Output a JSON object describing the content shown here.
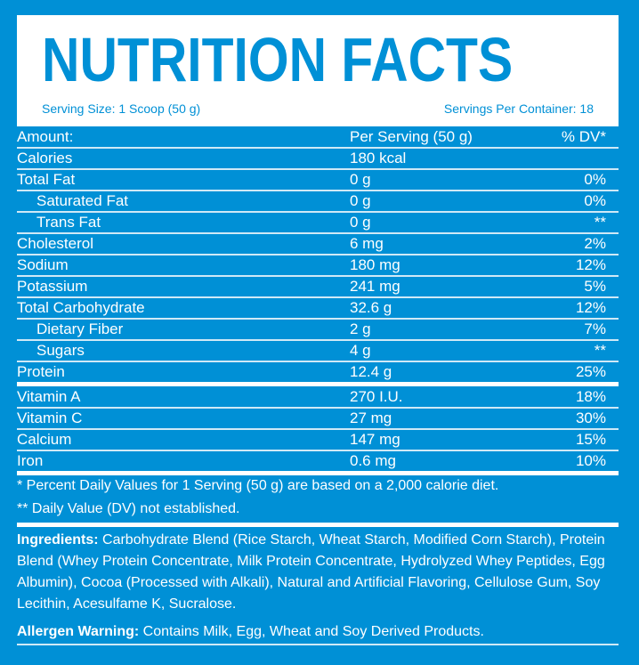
{
  "header": {
    "title": "NUTRITION FACTS",
    "serving_size": "Serving Size: 1 Scoop (50 g)",
    "servings_per_container": "Servings Per Container: 18"
  },
  "table": {
    "columns": [
      "Amount:",
      "Per Serving (50 g)",
      "% DV*"
    ],
    "rows": [
      {
        "name": "Calories",
        "amount": "180 kcal",
        "dv": ""
      },
      {
        "name": "Total Fat",
        "amount": "0 g",
        "dv": "0%"
      },
      {
        "name": "Saturated Fat",
        "amount": "0 g",
        "dv": "0%"
      },
      {
        "name": "Trans Fat",
        "amount": "0 g",
        "dv": "**"
      },
      {
        "name": "Cholesterol",
        "amount": "6 mg",
        "dv": "2%"
      },
      {
        "name": "Sodium",
        "amount": "180 mg",
        "dv": "12%"
      },
      {
        "name": "Potassium",
        "amount": "241 mg",
        "dv": "5%"
      },
      {
        "name": "Total Carbohydrate",
        "amount": "32.6 g",
        "dv": "12%"
      },
      {
        "name": "Dietary Fiber",
        "amount": "2 g",
        "dv": "7%"
      },
      {
        "name": "Sugars",
        "amount": "4 g",
        "dv": "**"
      },
      {
        "name": "Protein",
        "amount": "12.4 g",
        "dv": "25%"
      },
      {
        "name": "Vitamin A",
        "amount": "270 I.U.",
        "dv": "18%"
      },
      {
        "name": "Vitamin C",
        "amount": "27 mg",
        "dv": "30%"
      },
      {
        "name": "Calcium",
        "amount": "147 mg",
        "dv": "15%"
      },
      {
        "name": "Iron",
        "amount": "0.6 mg",
        "dv": "10%"
      }
    ]
  },
  "footnotes": [
    "* Percent Daily Values for 1 Serving (50 g) are based on a 2,000 calorie diet.",
    "** Daily Value (DV) not established."
  ],
  "ingredients": {
    "label": "Ingredients:",
    "text": " Carbohydrate Blend (Rice Starch, Wheat Starch, Modified Corn Starch), Protein Blend (Whey Protein Concentrate, Milk Protein Concentrate, Hydrolyzed Whey Peptides, Egg Albumin), Cocoa (Processed with Alkali), Natural and Artificial Flavoring, Cellulose Gum, Soy Lecithin, Acesulfame K, Sucralose."
  },
  "allergen": {
    "label": "Allergen Warning:",
    "text": " Contains Milk, Egg, Wheat and Soy Derived Products."
  },
  "colors": {
    "background": "#0090d6",
    "text": "#ffffff"
  }
}
